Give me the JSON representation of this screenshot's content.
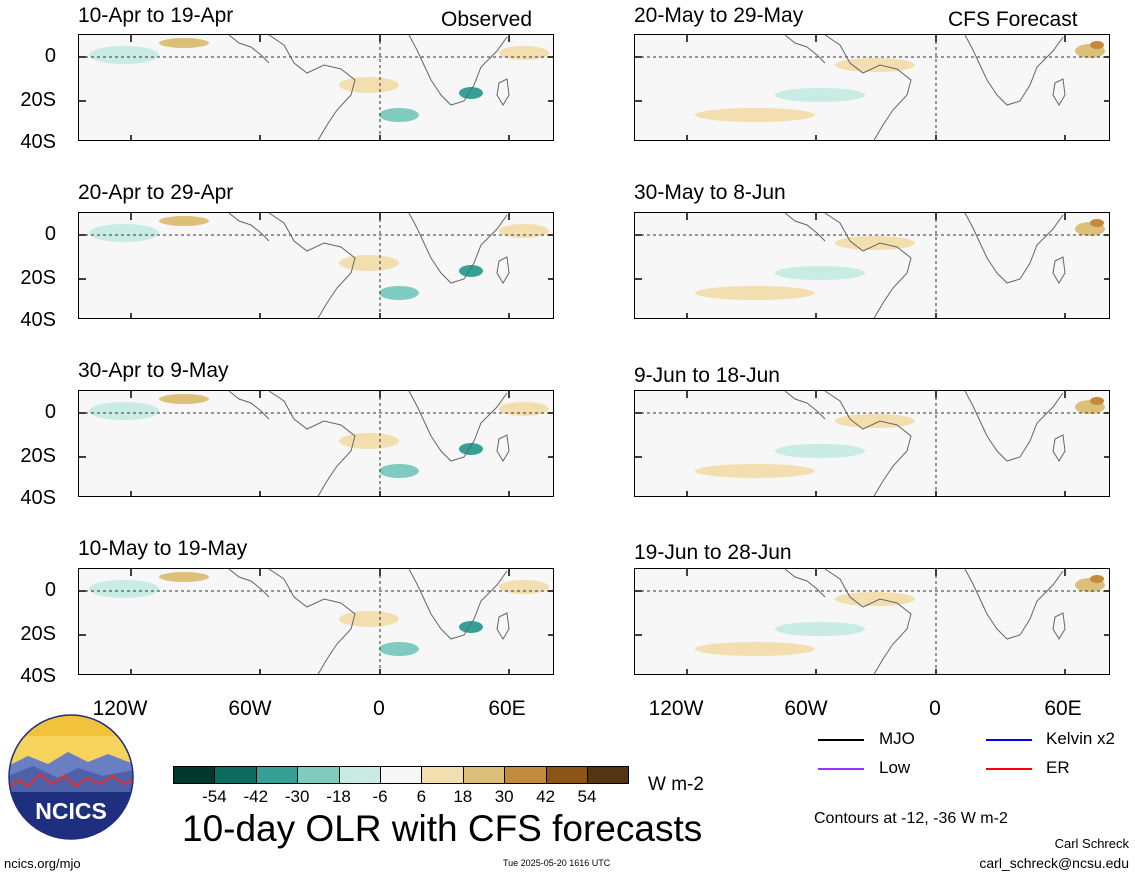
{
  "left_header": "Observed",
  "right_header": "CFS Forecast",
  "panels_left": [
    {
      "title": "10-Apr to 19-Apr"
    },
    {
      "title": "20-Apr to 29-Apr"
    },
    {
      "title": "30-Apr to 9-May"
    },
    {
      "title": "10-May to 19-May"
    }
  ],
  "panels_right": [
    {
      "title": "20-May to 29-May"
    },
    {
      "title": "30-May to 8-Jun"
    },
    {
      "title": "9-Jun to 18-Jun"
    },
    {
      "title": "19-Jun to 28-Jun"
    }
  ],
  "y_ticks": [
    "0",
    "20S",
    "40S"
  ],
  "x_ticks": [
    "120W",
    "60W",
    "0",
    "60E"
  ],
  "legend": [
    {
      "label": "MJO",
      "color": "#000000"
    },
    {
      "label": "Kelvin x2",
      "color": "#0000ff"
    },
    {
      "label": "Low",
      "color": "#9933ff"
    },
    {
      "label": "ER",
      "color": "#ff0000"
    }
  ],
  "colorbar": {
    "labels": [
      "-54",
      "-42",
      "-30",
      "-18",
      "-6",
      "6",
      "18",
      "30",
      "42",
      "54"
    ],
    "colors": [
      "#00382e",
      "#0a6b5e",
      "#35a095",
      "#7fcbbf",
      "#c8ebe3",
      "#f7f7f7",
      "#f3deb0",
      "#dcc07a",
      "#c48a3c",
      "#8c5417",
      "#553511"
    ],
    "units": "W m-2"
  },
  "main_title": "10-day OLR with CFS forecasts",
  "contours_note": "Contours at -12, -36 W m-2",
  "author": "Carl Schreck",
  "email": "carl_schreck@ncsu.edu",
  "site": "ncics.org/mjo",
  "timestamp": "Tue 2025-05-20 1616 UTC",
  "logo_text": "NCICS",
  "chart_data": {
    "type": "heatmap",
    "title": "10-day OLR with CFS forecasts",
    "units": "W m-2",
    "x_axis": {
      "ticks": [
        "120W",
        "60W",
        "0",
        "60E"
      ],
      "range": [
        "150W",
        "75E"
      ]
    },
    "y_axis": {
      "ticks": [
        "0",
        "20S",
        "40S"
      ],
      "range": [
        "40S",
        "10N"
      ]
    },
    "contour_levels": [
      -12,
      -36
    ],
    "color_levels": [
      -54,
      -42,
      -30,
      -18,
      -6,
      6,
      18,
      30,
      42,
      54
    ],
    "series": [
      {
        "name": "MJO",
        "color": "#000000"
      },
      {
        "name": "Kelvin x2",
        "color": "#0000ff"
      },
      {
        "name": "Low",
        "color": "#9933ff"
      },
      {
        "name": "ER",
        "color": "#ff0000"
      }
    ]
  }
}
